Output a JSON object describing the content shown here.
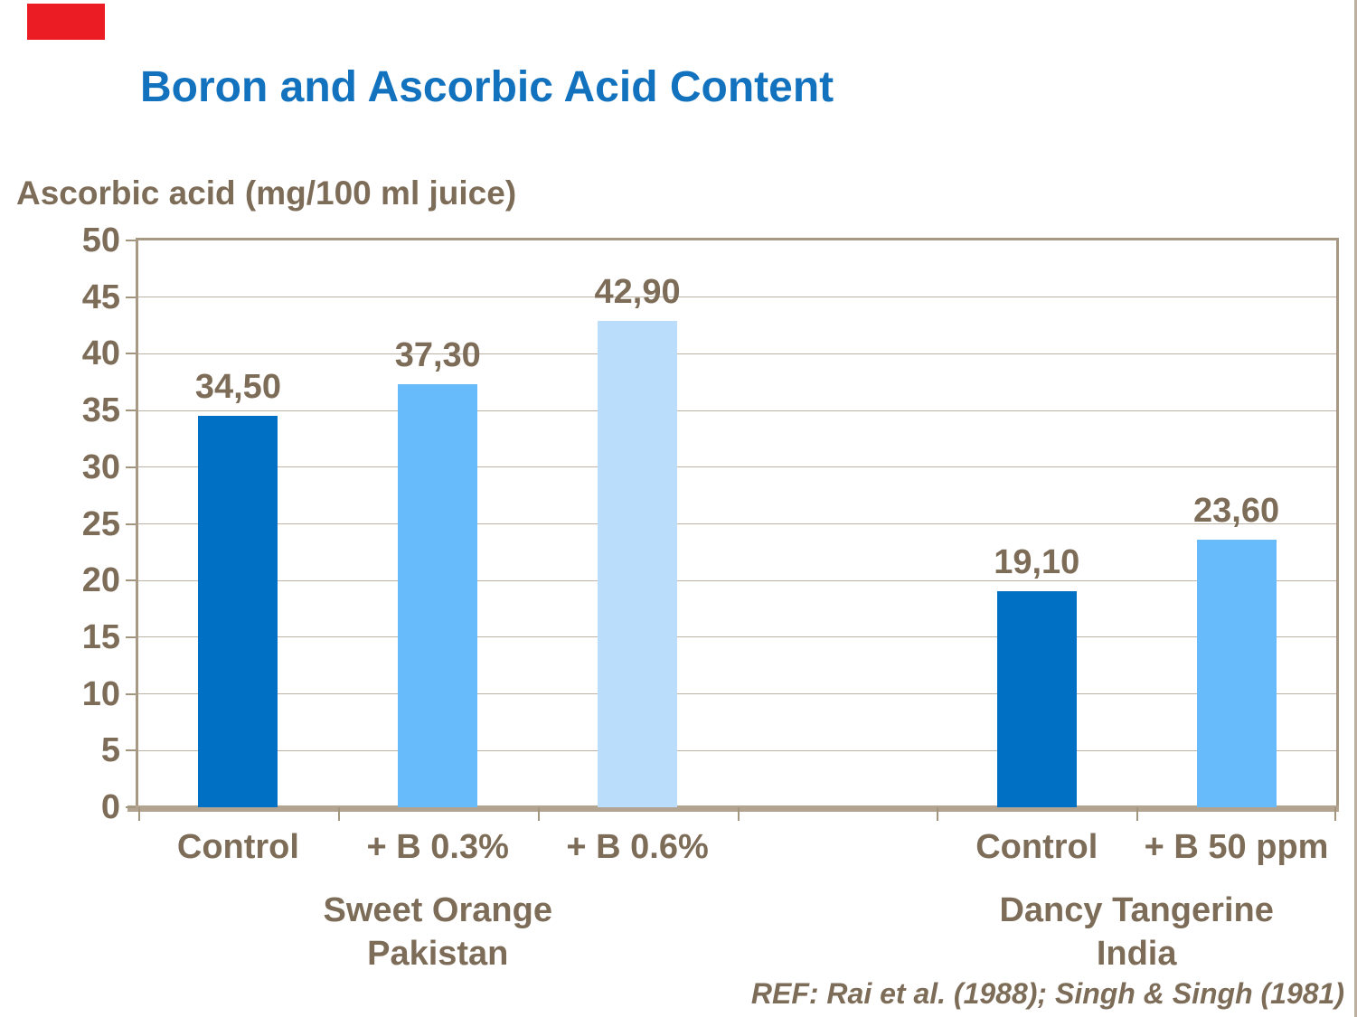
{
  "slide": {
    "title": "Boron and Ascorbic Acid Content",
    "reference": "REF: Rai et al. (1988); Singh & Singh (1981)"
  },
  "colors": {
    "title_blue": "#1272be",
    "text_brown": "#7d6d58",
    "dark_blue": "#0070c4",
    "medium_blue": "#68bbfb",
    "light_blue": "#b9ddfb",
    "gridline": "#bdb3a5",
    "plot_border": "#a79983",
    "axis_line": "#b2a491",
    "red_accent": "#ec1c24",
    "slide_edge": "#bcafa0"
  },
  "chart_data": {
    "type": "bar",
    "title": "Boron and Ascorbic Acid Content",
    "ylabel": "Ascorbic acid (mg/100 ml juice)",
    "xlabel": "",
    "ylim": [
      0,
      50
    ],
    "yticks": [
      0,
      5,
      10,
      15,
      20,
      25,
      30,
      35,
      40,
      45,
      50
    ],
    "grid": true,
    "legend": "none",
    "decimal_separator": ",",
    "slots_total": 6,
    "bars": [
      {
        "slot": 0,
        "category": "Control",
        "value": 34.5,
        "display": "34,50",
        "group": "Sweet Orange Pakistan",
        "color_key": "dark_blue"
      },
      {
        "slot": 1,
        "category": "+ B 0.3%",
        "value": 37.3,
        "display": "37,30",
        "group": "Sweet Orange Pakistan",
        "color_key": "medium_blue"
      },
      {
        "slot": 2,
        "category": "+ B 0.6%",
        "value": 42.9,
        "display": "42,90",
        "group": "Sweet Orange Pakistan",
        "color_key": "light_blue"
      },
      {
        "slot": 4,
        "category": "Control",
        "value": 19.1,
        "display": "19,10",
        "group": "Dancy Tangerine India",
        "color_key": "dark_blue"
      },
      {
        "slot": 5,
        "category": "+ B 50 ppm",
        "value": 23.6,
        "display": "23,60",
        "group": "Dancy Tangerine India",
        "color_key": "medium_blue"
      }
    ],
    "groups": [
      {
        "line1": "Sweet Orange",
        "line2": "Pakistan",
        "slot_start": 0,
        "slot_count": 3
      },
      {
        "line1": "Dancy Tangerine",
        "line2": "India",
        "slot_start": 4,
        "slot_count": 2
      }
    ]
  }
}
